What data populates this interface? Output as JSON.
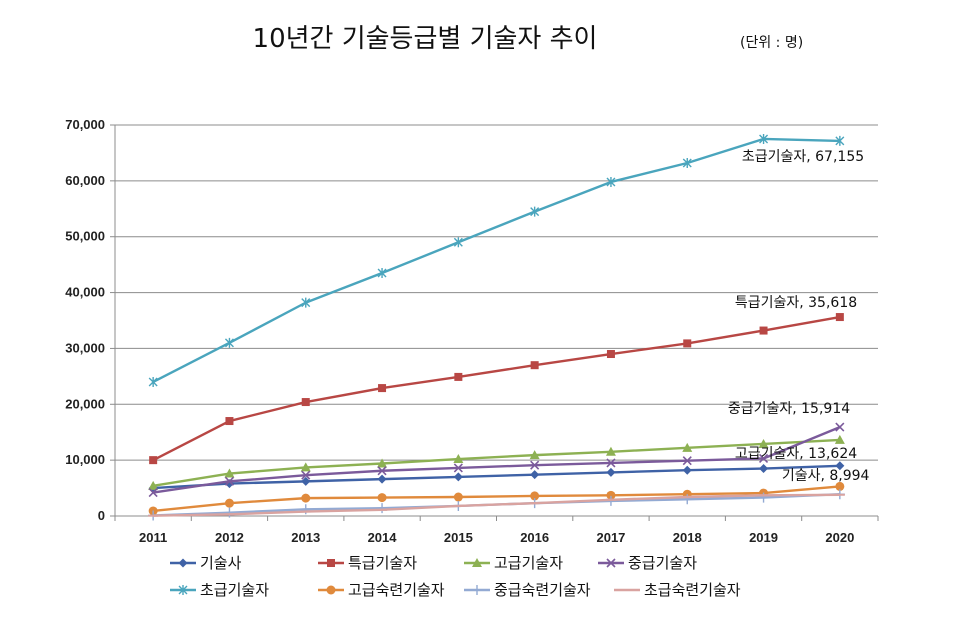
{
  "title": "10년간 기술등급별 기술자 추이",
  "unit": "(단위 : 명)",
  "chart_data": {
    "type": "line",
    "categories": [
      "2011",
      "2012",
      "2013",
      "2014",
      "2015",
      "2016",
      "2017",
      "2018",
      "2019",
      "2020"
    ],
    "ylim": [
      0,
      70000
    ],
    "yticks": [
      "0",
      "10,000",
      "20,000",
      "30,000",
      "40,000",
      "50,000",
      "60,000",
      "70,000"
    ],
    "ytick_values": [
      0,
      10000,
      20000,
      30000,
      40000,
      50000,
      60000,
      70000
    ],
    "grid": true,
    "legend_position": "bottom",
    "series": [
      {
        "name": "기술사",
        "color": "#3f62a6",
        "marker": "diamond",
        "values": [
          5000,
          5800,
          6200,
          6600,
          7000,
          7400,
          7800,
          8200,
          8500,
          8994
        ]
      },
      {
        "name": "특급기술자",
        "color": "#b84744",
        "marker": "square",
        "values": [
          10000,
          17000,
          20400,
          22900,
          24900,
          27000,
          29000,
          30900,
          33200,
          35618
        ]
      },
      {
        "name": "고급기술자",
        "color": "#8db153",
        "marker": "triangle",
        "values": [
          5400,
          7600,
          8700,
          9400,
          10200,
          10900,
          11500,
          12200,
          12900,
          13624
        ]
      },
      {
        "name": "중급기술자",
        "color": "#7b5a9b",
        "marker": "x",
        "values": [
          4200,
          6200,
          7300,
          8100,
          8600,
          9100,
          9500,
          9900,
          10300,
          15914
        ]
      },
      {
        "name": "초급기술자",
        "color": "#4aa5bd",
        "marker": "asterisk",
        "values": [
          24000,
          31000,
          38200,
          43500,
          49000,
          54500,
          59800,
          63200,
          67500,
          67155
        ]
      },
      {
        "name": "고급숙련기술자",
        "color": "#e08a3c",
        "marker": "circle",
        "values": [
          900,
          2300,
          3200,
          3300,
          3400,
          3600,
          3700,
          3900,
          4100,
          5300
        ]
      },
      {
        "name": "중급숙련기술자",
        "color": "#93aad3",
        "marker": "plus",
        "values": [
          100,
          600,
          1200,
          1400,
          1800,
          2300,
          2700,
          3000,
          3300,
          3900
        ]
      },
      {
        "name": "초급숙련기술자",
        "color": "#d9a3a0",
        "marker": "dash",
        "values": [
          50,
          300,
          800,
          1100,
          1800,
          2300,
          2900,
          3400,
          3700,
          3800
        ]
      }
    ],
    "annotations": [
      {
        "text": "초급기술자, 67,155",
        "series": "초급기술자"
      },
      {
        "text": "특급기술자, 35,618",
        "series": "특급기술자"
      },
      {
        "text": "중급기술자, 15,914",
        "series": "중급기술자"
      },
      {
        "text": "고급기술자, 13,624",
        "series": "고급기술자"
      },
      {
        "text": "기술사, 8,994",
        "series": "기술사"
      }
    ]
  }
}
